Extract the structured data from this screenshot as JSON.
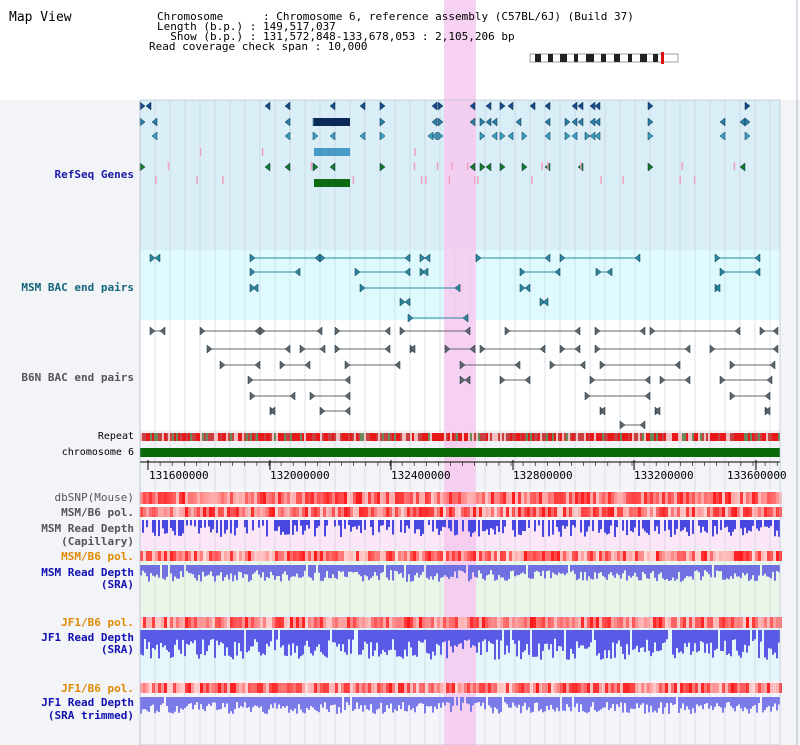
{
  "header": {
    "title": "Map View",
    "lines": [
      "Chromosome      : Chromosome 6, reference assembly (C57BL/6J) (Build 37)",
      "Length (b.p.) : 149,517,037",
      "  Show (b.p.) : 131,572,848-133,678,053 : 2,105,206 bp",
      "Read coverage check span : 10,000"
    ]
  },
  "tracks": {
    "refseq": "RefSeq Genes",
    "msm_bac": "MSM BAC end pairs",
    "b6n_bac": "B6N BAC end pairs",
    "repeat": "Repeat",
    "chromosome": "chromosome 6",
    "dbsnp": "dbSNP(Mouse)",
    "msm_b6_pol_1": "MSM/B6 pol.",
    "msm_depth_cap_1": "MSM Read Depth",
    "msm_depth_cap_2": "(Capillary)",
    "msm_b6_pol_2": "MSM/B6 pol.",
    "msm_depth_sra_1": "MSM Read Depth",
    "msm_depth_sra_2": "(SRA)",
    "jf1_b6_pol_1": "JF1/B6 pol.",
    "jf1_depth_sra_1": "JF1 Read Depth",
    "jf1_depth_sra_2": "(SRA)",
    "jf1_b6_pol_2": "JF1/B6 pol.",
    "jf1_depth_trim_1": "JF1 Read Depth",
    "jf1_depth_trim_2": "(SRA trimmed)"
  },
  "axis": {
    "ticks": [
      "131600000",
      "132000000",
      "132400000",
      "132800000",
      "133200000",
      "133600000"
    ]
  },
  "colors": {
    "refseq_label": "#1a1aa6",
    "msm_label": "#14657a",
    "b6n_label": "#555555",
    "pol_label": "#e08a00",
    "depth_label": "#1010b0",
    "highlight": "#f6c9ee"
  }
}
